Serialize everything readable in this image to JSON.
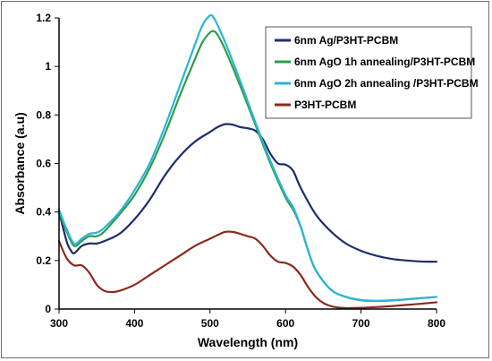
{
  "chart_data": {
    "type": "line",
    "xlabel": "Wavelength (nm)",
    "ylabel": "Absorbance (a.u)",
    "xlim": [
      300,
      800
    ],
    "ylim": [
      0,
      1.2
    ],
    "x_ticks": [
      300,
      400,
      500,
      600,
      700,
      800
    ],
    "y_ticks": [
      0,
      0.2,
      0.4,
      0.6,
      0.8,
      1,
      1.2
    ],
    "x_tick_labels": [
      "300",
      "400",
      "500",
      "600",
      "700",
      "800"
    ],
    "y_tick_labels": [
      "0",
      "0.2",
      "0.4",
      "0.6",
      "0.8",
      "1",
      "1.2"
    ],
    "grid": false,
    "legend_position": "top-right",
    "series": [
      {
        "name": "6nm Ag/P3HT-PCBM",
        "color": "#1f2d6b",
        "points": [
          [
            300,
            0.4
          ],
          [
            310,
            0.28
          ],
          [
            315,
            0.245
          ],
          [
            320,
            0.23
          ],
          [
            330,
            0.26
          ],
          [
            340,
            0.27
          ],
          [
            350,
            0.27
          ],
          [
            360,
            0.28
          ],
          [
            380,
            0.31
          ],
          [
            400,
            0.37
          ],
          [
            420,
            0.45
          ],
          [
            440,
            0.55
          ],
          [
            460,
            0.63
          ],
          [
            480,
            0.69
          ],
          [
            500,
            0.73
          ],
          [
            510,
            0.75
          ],
          [
            520,
            0.762
          ],
          [
            530,
            0.76
          ],
          [
            540,
            0.75
          ],
          [
            550,
            0.745
          ],
          [
            560,
            0.735
          ],
          [
            570,
            0.7
          ],
          [
            580,
            0.64
          ],
          [
            590,
            0.6
          ],
          [
            600,
            0.595
          ],
          [
            610,
            0.57
          ],
          [
            620,
            0.5
          ],
          [
            640,
            0.39
          ],
          [
            660,
            0.32
          ],
          [
            680,
            0.27
          ],
          [
            700,
            0.24
          ],
          [
            720,
            0.22
          ],
          [
            740,
            0.207
          ],
          [
            760,
            0.2
          ],
          [
            780,
            0.196
          ],
          [
            800,
            0.195
          ]
        ]
      },
      {
        "name": "6nm AgO 1h annealing/P3HT-PCBM",
        "color": "#2e9d49",
        "points": [
          [
            300,
            0.4
          ],
          [
            310,
            0.32
          ],
          [
            320,
            0.26
          ],
          [
            330,
            0.28
          ],
          [
            340,
            0.3
          ],
          [
            350,
            0.3
          ],
          [
            360,
            0.32
          ],
          [
            380,
            0.39
          ],
          [
            400,
            0.47
          ],
          [
            420,
            0.58
          ],
          [
            440,
            0.72
          ],
          [
            460,
            0.88
          ],
          [
            480,
            1.03
          ],
          [
            490,
            1.1
          ],
          [
            500,
            1.14
          ],
          [
            505,
            1.145
          ],
          [
            510,
            1.13
          ],
          [
            520,
            1.07
          ],
          [
            540,
            0.92
          ],
          [
            560,
            0.76
          ],
          [
            580,
            0.6
          ],
          [
            600,
            0.46
          ],
          [
            610,
            0.41
          ],
          [
            620,
            0.34
          ],
          [
            630,
            0.24
          ],
          [
            640,
            0.16
          ],
          [
            660,
            0.08
          ],
          [
            680,
            0.05
          ],
          [
            700,
            0.037
          ],
          [
            720,
            0.034
          ],
          [
            740,
            0.036
          ],
          [
            760,
            0.04
          ],
          [
            780,
            0.045
          ],
          [
            800,
            0.05
          ]
        ]
      },
      {
        "name": "6nm AgO 2h annealing /P3HT-PCBM",
        "color": "#2bb5d6",
        "points": [
          [
            300,
            0.41
          ],
          [
            310,
            0.33
          ],
          [
            320,
            0.27
          ],
          [
            330,
            0.29
          ],
          [
            340,
            0.31
          ],
          [
            350,
            0.315
          ],
          [
            360,
            0.335
          ],
          [
            380,
            0.4
          ],
          [
            400,
            0.49
          ],
          [
            420,
            0.6
          ],
          [
            440,
            0.75
          ],
          [
            460,
            0.92
          ],
          [
            480,
            1.09
          ],
          [
            490,
            1.17
          ],
          [
            500,
            1.21
          ],
          [
            505,
            1.2
          ],
          [
            510,
            1.17
          ],
          [
            520,
            1.1
          ],
          [
            540,
            0.94
          ],
          [
            560,
            0.77
          ],
          [
            580,
            0.61
          ],
          [
            600,
            0.47
          ],
          [
            610,
            0.42
          ],
          [
            620,
            0.34
          ],
          [
            630,
            0.24
          ],
          [
            640,
            0.16
          ],
          [
            660,
            0.08
          ],
          [
            680,
            0.05
          ],
          [
            700,
            0.036
          ],
          [
            720,
            0.033
          ],
          [
            740,
            0.035
          ],
          [
            760,
            0.04
          ],
          [
            780,
            0.045
          ],
          [
            800,
            0.05
          ]
        ]
      },
      {
        "name": "P3HT-PCBM",
        "color": "#8b2a1e",
        "points": [
          [
            300,
            0.28
          ],
          [
            310,
            0.21
          ],
          [
            320,
            0.18
          ],
          [
            330,
            0.18
          ],
          [
            340,
            0.15
          ],
          [
            350,
            0.1
          ],
          [
            360,
            0.075
          ],
          [
            370,
            0.07
          ],
          [
            380,
            0.075
          ],
          [
            400,
            0.1
          ],
          [
            420,
            0.14
          ],
          [
            440,
            0.18
          ],
          [
            460,
            0.22
          ],
          [
            480,
            0.26
          ],
          [
            500,
            0.29
          ],
          [
            510,
            0.305
          ],
          [
            520,
            0.318
          ],
          [
            530,
            0.318
          ],
          [
            540,
            0.31
          ],
          [
            550,
            0.3
          ],
          [
            560,
            0.29
          ],
          [
            570,
            0.26
          ],
          [
            580,
            0.22
          ],
          [
            590,
            0.195
          ],
          [
            600,
            0.19
          ],
          [
            610,
            0.175
          ],
          [
            620,
            0.14
          ],
          [
            630,
            0.09
          ],
          [
            640,
            0.05
          ],
          [
            650,
            0.025
          ],
          [
            660,
            0.012
          ],
          [
            670,
            0.006
          ],
          [
            680,
            0.004
          ],
          [
            700,
            0.005
          ],
          [
            720,
            0.008
          ],
          [
            740,
            0.012
          ],
          [
            760,
            0.017
          ],
          [
            780,
            0.022
          ],
          [
            800,
            0.028
          ]
        ]
      }
    ]
  }
}
